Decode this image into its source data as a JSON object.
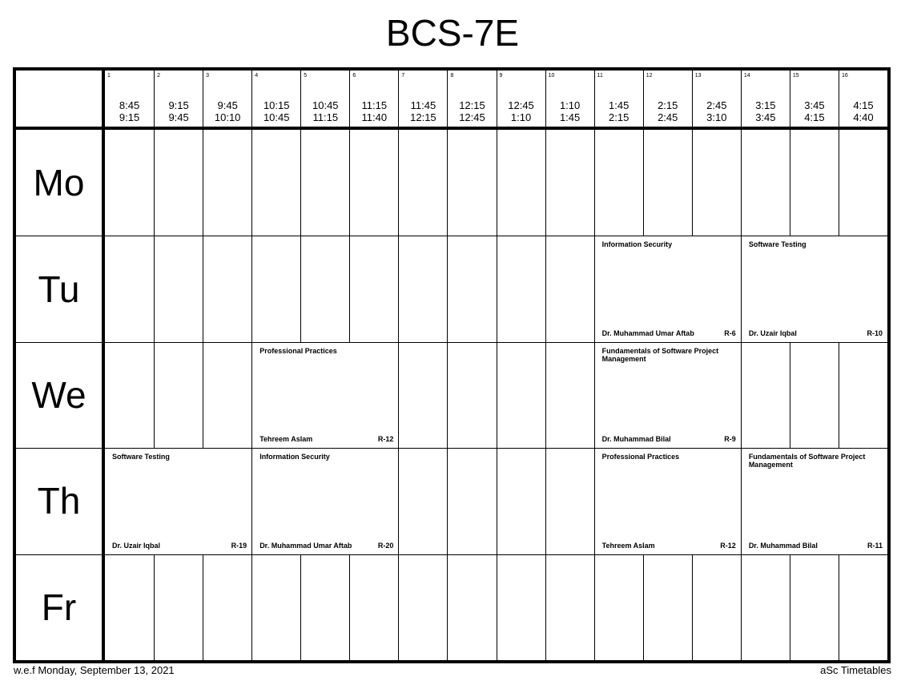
{
  "title": "BCS-7E",
  "slots": [
    {
      "num": "1",
      "start": "8:45",
      "end": "9:15"
    },
    {
      "num": "2",
      "start": "9:15",
      "end": "9:45"
    },
    {
      "num": "3",
      "start": "9:45",
      "end": "10:10"
    },
    {
      "num": "4",
      "start": "10:15",
      "end": "10:45"
    },
    {
      "num": "5",
      "start": "10:45",
      "end": "11:15"
    },
    {
      "num": "6",
      "start": "11:15",
      "end": "11:40"
    },
    {
      "num": "7",
      "start": "11:45",
      "end": "12:15"
    },
    {
      "num": "8",
      "start": "12:15",
      "end": "12:45"
    },
    {
      "num": "9",
      "start": "12:45",
      "end": "1:10"
    },
    {
      "num": "10",
      "start": "1:10",
      "end": "1:45"
    },
    {
      "num": "11",
      "start": "1:45",
      "end": "2:15"
    },
    {
      "num": "12",
      "start": "2:15",
      "end": "2:45"
    },
    {
      "num": "13",
      "start": "2:45",
      "end": "3:10"
    },
    {
      "num": "14",
      "start": "3:15",
      "end": "3:45"
    },
    {
      "num": "15",
      "start": "3:45",
      "end": "4:15"
    },
    {
      "num": "16",
      "start": "4:15",
      "end": "4:40"
    }
  ],
  "days": [
    "Mo",
    "Tu",
    "We",
    "Th",
    "Fr"
  ],
  "lessons": [
    {
      "day": 1,
      "from": 11,
      "to": 13,
      "subject": "Information Security",
      "teacher": "Dr. Muhammad Umar Aftab",
      "room": "R-6"
    },
    {
      "day": 1,
      "from": 14,
      "to": 16,
      "subject": "Software Testing",
      "teacher": "Dr. Uzair Iqbal",
      "room": "R-10"
    },
    {
      "day": 2,
      "from": 4,
      "to": 6,
      "subject": "Professional Practices",
      "teacher": "Tehreem Aslam",
      "room": "R-12"
    },
    {
      "day": 2,
      "from": 11,
      "to": 13,
      "subject": "Fundamentals of Software Project Management",
      "teacher": "Dr. Muhammad Bilal",
      "room": "R-9"
    },
    {
      "day": 3,
      "from": 1,
      "to": 3,
      "subject": "Software Testing",
      "teacher": "Dr. Uzair Iqbal",
      "room": "R-19"
    },
    {
      "day": 3,
      "from": 4,
      "to": 6,
      "subject": "Information Security",
      "teacher": "Dr. Muhammad Umar Aftab",
      "room": "R-20"
    },
    {
      "day": 3,
      "from": 11,
      "to": 13,
      "subject": "Professional Practices",
      "teacher": "Tehreem Aslam",
      "room": "R-12"
    },
    {
      "day": 3,
      "from": 14,
      "to": 16,
      "subject": "Fundamentals of Software Project Management",
      "teacher": "Dr. Muhammad Bilal",
      "room": "R-11"
    }
  ],
  "footer": {
    "left": "w.e.f Monday, September 13, 2021",
    "right": "aSc Timetables"
  }
}
